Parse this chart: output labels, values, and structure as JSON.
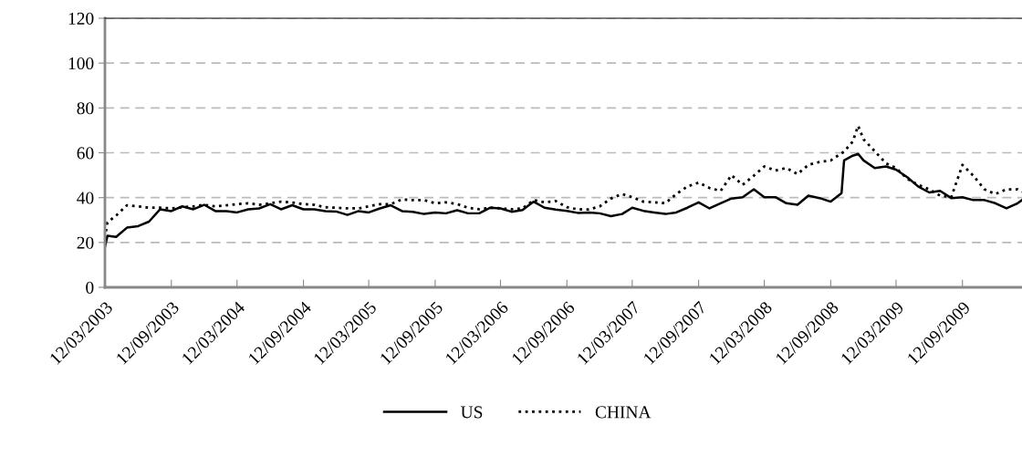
{
  "chart_data": {
    "type": "line",
    "x": [
      "2003-03-12",
      "2003-03-19",
      "2003-04-12",
      "2003-05-12",
      "2003-06-12",
      "2003-07-12",
      "2003-08-12",
      "2003-09-12",
      "2003-10-12",
      "2003-11-12",
      "2003-12-12",
      "2004-01-12",
      "2004-02-12",
      "2004-03-12",
      "2004-04-12",
      "2004-05-12",
      "2004-06-12",
      "2004-07-12",
      "2004-08-12",
      "2004-09-12",
      "2004-10-12",
      "2004-11-12",
      "2004-12-12",
      "2005-01-12",
      "2005-02-12",
      "2005-03-12",
      "2005-04-12",
      "2005-05-12",
      "2005-06-12",
      "2005-07-12",
      "2005-08-12",
      "2005-09-12",
      "2005-10-12",
      "2005-11-12",
      "2005-12-12",
      "2006-01-12",
      "2006-02-12",
      "2006-03-12",
      "2006-04-12",
      "2006-05-12",
      "2006-06-12",
      "2006-07-12",
      "2006-08-12",
      "2006-09-12",
      "2006-10-12",
      "2006-11-12",
      "2006-12-12",
      "2007-01-12",
      "2007-02-12",
      "2007-03-12",
      "2007-04-12",
      "2007-05-12",
      "2007-06-12",
      "2007-07-12",
      "2007-08-12",
      "2007-09-12",
      "2007-10-12",
      "2007-11-12",
      "2007-12-12",
      "2008-01-12",
      "2008-02-12",
      "2008-03-12",
      "2008-04-12",
      "2008-05-12",
      "2008-06-12",
      "2008-07-12",
      "2008-08-12",
      "2008-09-12",
      "2008-10-12",
      "2008-10-19",
      "2008-11-12",
      "2008-11-27",
      "2008-12-12",
      "2009-01-12",
      "2009-02-12",
      "2009-03-12",
      "2009-04-12",
      "2009-05-12",
      "2009-06-12",
      "2009-07-12",
      "2009-08-12",
      "2009-09-12",
      "2009-10-12",
      "2009-11-12",
      "2009-12-12",
      "2010-01-12",
      "2010-02-12",
      "2010-02-24"
    ],
    "series": [
      {
        "name": "US",
        "color": "#000000",
        "line_style": "solid",
        "values": [
          18,
          23,
          22.5,
          26.6,
          27.3,
          29.3,
          34.8,
          34,
          36.1,
          34.8,
          36.8,
          34,
          34,
          33.4,
          34.8,
          35.2,
          37.1,
          34.8,
          36.6,
          34.8,
          34.8,
          34,
          33.8,
          32.3,
          34,
          33.4,
          35.2,
          36.6,
          34,
          33.7,
          32.7,
          33.4,
          33,
          34.4,
          33,
          33,
          35.5,
          35.2,
          33.7,
          34.5,
          38.2,
          35.5,
          34.7,
          34.1,
          33.2,
          33.4,
          33,
          31.7,
          32.7,
          35.5,
          34.1,
          33.4,
          32.7,
          33.4,
          35.5,
          37.9,
          35.2,
          37.5,
          39.6,
          40.2,
          43.7,
          40.2,
          40.2,
          37.5,
          36.8,
          40.9,
          39.8,
          38.2,
          42,
          56.6,
          58.7,
          59.5,
          56.6,
          53.2,
          53.9,
          52.5,
          49.1,
          45,
          42.3,
          43,
          39.8,
          40.2,
          38.9,
          38.9,
          37.5,
          35.2,
          37.5,
          38.9
        ]
      },
      {
        "name": "CHINA",
        "color": "#000000",
        "line_style": "dotted",
        "values": [
          22,
          29,
          32,
          36.6,
          36.1,
          35.5,
          35.5,
          35.2,
          35.7,
          36.1,
          36.8,
          36.1,
          36.6,
          37.1,
          37.5,
          36.8,
          37.5,
          38.2,
          37.8,
          37.1,
          36.8,
          35.7,
          35.5,
          35.2,
          35.2,
          36.1,
          37.1,
          37.1,
          39.2,
          38.9,
          38.9,
          37.5,
          37.9,
          37.1,
          35.5,
          34.8,
          35.5,
          35.2,
          34.8,
          35.2,
          38.9,
          37.9,
          38.5,
          35.7,
          34.8,
          34.7,
          36.1,
          39.6,
          41.6,
          40.2,
          38.2,
          37.9,
          37.5,
          41.6,
          45,
          46.7,
          44.3,
          43,
          50,
          45.7,
          49.8,
          53.9,
          52.1,
          53.2,
          50.5,
          54.6,
          55.9,
          56.6,
          59.8,
          60.5,
          65,
          72,
          66,
          60.7,
          55.3,
          53.2,
          48.4,
          45.7,
          43.7,
          40.9,
          40.2,
          54.6,
          49.8,
          43.7,
          41.6,
          43.7,
          43.7,
          42.6
        ]
      }
    ],
    "ylim": [
      0,
      120
    ],
    "yticks": [
      0,
      20,
      40,
      60,
      80,
      100,
      120
    ],
    "xlim": [
      "2003-03-12",
      "2010-02-24"
    ],
    "xticks": [
      {
        "value": "2003-03-12",
        "label": "12/03/2003"
      },
      {
        "value": "2003-09-12",
        "label": "12/09/2003"
      },
      {
        "value": "2004-03-12",
        "label": "12/03/2004"
      },
      {
        "value": "2004-09-12",
        "label": "12/09/2004"
      },
      {
        "value": "2005-03-12",
        "label": "12/03/2005"
      },
      {
        "value": "2005-09-12",
        "label": "12/09/2005"
      },
      {
        "value": "2006-03-12",
        "label": "12/03/2006"
      },
      {
        "value": "2006-09-12",
        "label": "12/09/2006"
      },
      {
        "value": "2007-03-12",
        "label": "12/03/2007"
      },
      {
        "value": "2007-09-12",
        "label": "12/09/2007"
      },
      {
        "value": "2008-03-12",
        "label": "12/03/2008"
      },
      {
        "value": "2008-09-12",
        "label": "12/09/2008"
      },
      {
        "value": "2009-03-12",
        "label": "12/03/2009"
      },
      {
        "value": "2009-09-12",
        "label": "12/09/2009"
      }
    ],
    "grid": "y",
    "legend": "bottom",
    "marker": "none"
  }
}
